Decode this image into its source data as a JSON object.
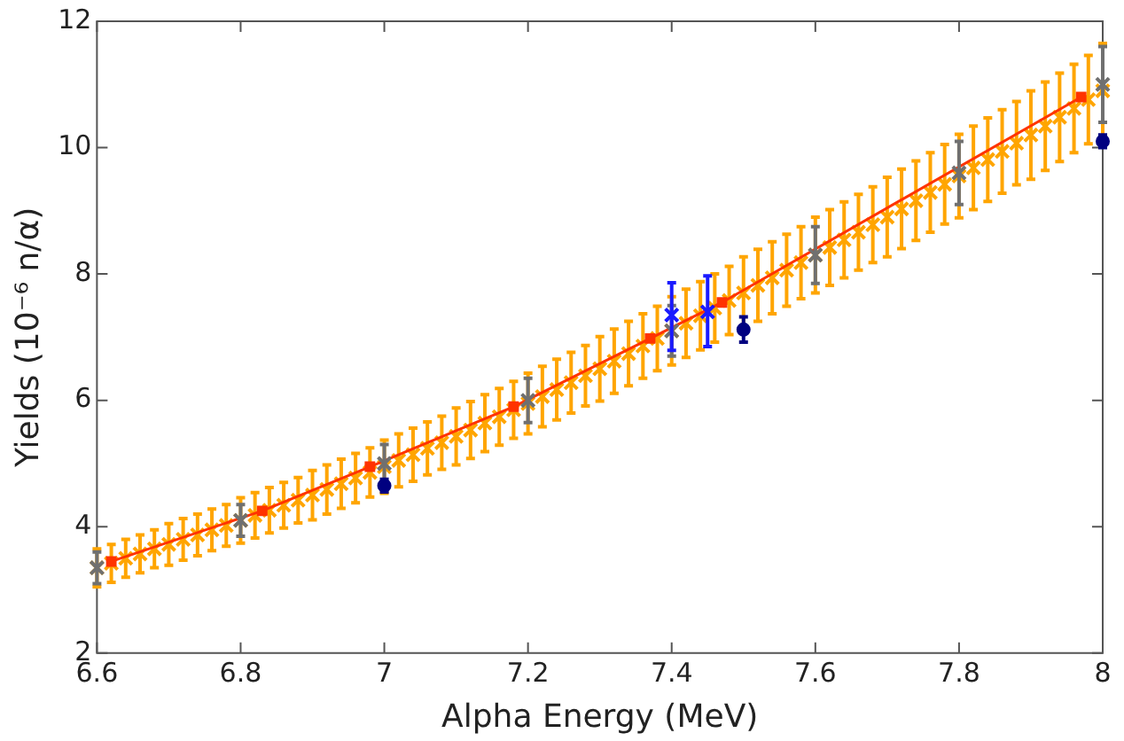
{
  "chart_data": {
    "type": "scatter",
    "xlabel": "Alpha Energy (MeV)",
    "ylabel": "Yields (10⁻⁶ n/α)",
    "xlim": [
      6.6,
      8
    ],
    "xticks": [
      6.6,
      6.8,
      7,
      7.2,
      7.4,
      7.6,
      7.8,
      8
    ],
    "ylim": [
      2,
      12
    ],
    "yticks": [
      2,
      4,
      6,
      8,
      10,
      12
    ],
    "grid": false,
    "legend": false,
    "series": [
      {
        "type": "scatter",
        "color": "#ffa500",
        "marker": "cross",
        "x": [
          6.6,
          6.62,
          6.64,
          6.66,
          6.68,
          6.7,
          6.72,
          6.74,
          6.76,
          6.78,
          6.8,
          6.82,
          6.84,
          6.86,
          6.88,
          6.9,
          6.92,
          6.94,
          6.96,
          6.98,
          7.0,
          7.02,
          7.04,
          7.06,
          7.08,
          7.1,
          7.12,
          7.14,
          7.16,
          7.18,
          7.2,
          7.22,
          7.24,
          7.26,
          7.28,
          7.3,
          7.32,
          7.34,
          7.36,
          7.38,
          7.4,
          7.42,
          7.44,
          7.46,
          7.48,
          7.5,
          7.52,
          7.54,
          7.56,
          7.58,
          7.6,
          7.62,
          7.64,
          7.66,
          7.68,
          7.7,
          7.72,
          7.74,
          7.76,
          7.78,
          7.8,
          7.82,
          7.84,
          7.86,
          7.88,
          7.9,
          7.92,
          7.94,
          7.96,
          7.98,
          8.0
        ],
        "values": [
          3.35,
          3.42,
          3.5,
          3.57,
          3.65,
          3.72,
          3.8,
          3.87,
          3.95,
          4.02,
          4.1,
          4.18,
          4.26,
          4.34,
          4.42,
          4.5,
          4.59,
          4.68,
          4.77,
          4.86,
          4.95,
          5.05,
          5.14,
          5.24,
          5.33,
          5.43,
          5.53,
          5.64,
          5.74,
          5.85,
          5.95,
          6.06,
          6.17,
          6.28,
          6.39,
          6.5,
          6.62,
          6.74,
          6.86,
          6.98,
          7.1,
          7.22,
          7.34,
          7.46,
          7.58,
          7.7,
          7.82,
          7.94,
          8.06,
          8.18,
          8.3,
          8.42,
          8.54,
          8.66,
          8.78,
          8.9,
          9.03,
          9.16,
          9.29,
          9.42,
          9.55,
          9.68,
          9.81,
          9.94,
          10.07,
          10.2,
          10.34,
          10.48,
          10.62,
          10.76,
          10.9
        ],
        "errors": [
          0.3,
          0.3,
          0.3,
          0.3,
          0.3,
          0.33,
          0.33,
          0.33,
          0.33,
          0.33,
          0.36,
          0.36,
          0.36,
          0.36,
          0.36,
          0.39,
          0.39,
          0.39,
          0.39,
          0.39,
          0.42,
          0.42,
          0.42,
          0.42,
          0.42,
          0.45,
          0.45,
          0.45,
          0.45,
          0.45,
          0.48,
          0.48,
          0.48,
          0.48,
          0.48,
          0.51,
          0.51,
          0.51,
          0.51,
          0.51,
          0.54,
          0.54,
          0.54,
          0.54,
          0.54,
          0.57,
          0.57,
          0.57,
          0.57,
          0.57,
          0.6,
          0.6,
          0.6,
          0.6,
          0.6,
          0.63,
          0.63,
          0.63,
          0.63,
          0.63,
          0.66,
          0.66,
          0.66,
          0.66,
          0.66,
          0.7,
          0.7,
          0.7,
          0.7,
          0.7,
          0.75
        ]
      },
      {
        "type": "line",
        "color": "#ff3300",
        "marker": "square",
        "line_style": "solid",
        "x": [
          6.62,
          6.83,
          6.98,
          7.18,
          7.37,
          7.47,
          7.97
        ],
        "values": [
          3.45,
          4.25,
          4.95,
          5.9,
          6.98,
          7.55,
          10.8
        ]
      },
      {
        "type": "scatter",
        "color": "#707070",
        "marker": "cross",
        "x": [
          6.6,
          6.8,
          7.0,
          7.2,
          7.4,
          7.6,
          7.8,
          8.0
        ],
        "values": [
          3.35,
          4.1,
          5.0,
          6.0,
          7.1,
          8.3,
          9.6,
          11.0
        ],
        "errors": [
          0.25,
          0.25,
          0.3,
          0.35,
          0.4,
          0.45,
          0.5,
          0.6
        ]
      },
      {
        "type": "scatter",
        "color": "#1a1aff",
        "marker": "cross",
        "x": [
          7.4,
          7.45
        ],
        "values": [
          7.35,
          7.4
        ],
        "errors": [
          [
            6.79,
            7.86
          ],
          [
            6.85,
            7.97
          ]
        ]
      },
      {
        "type": "scatter",
        "color": "#000080",
        "marker": "circle",
        "x": [
          7.0,
          7.5,
          8.0
        ],
        "values": [
          4.65,
          7.12,
          10.1
        ],
        "errors": [
          0.1,
          0.2,
          0.1
        ]
      }
    ]
  }
}
